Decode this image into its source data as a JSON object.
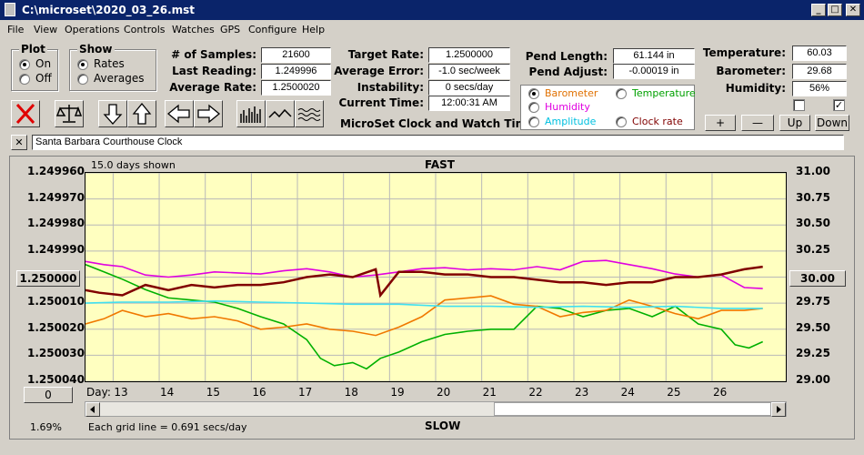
{
  "window": {
    "title": "C:\\microset\\2020_03_26.mst",
    "min": "_",
    "max": "□",
    "close": "✕"
  },
  "menu": [
    "File",
    "View",
    "Operations",
    "Controls",
    "Watches",
    "GPS",
    "Configure",
    "Help"
  ],
  "plot": {
    "label": "Plot",
    "on": "On",
    "off": "Off",
    "selected": "On"
  },
  "show": {
    "label": "Show",
    "rates": "Rates",
    "averages": "Averages",
    "selected": "Rates"
  },
  "stats": {
    "samples_label": "# of Samples:",
    "samples": "21600",
    "last_label": "Last Reading:",
    "last": "1.249996",
    "avg_label": "Average Rate:",
    "avg": "1.2500020"
  },
  "target": {
    "target_label": "Target Rate:",
    "target": "1.2500000",
    "error_label": "Average Error:",
    "error": "-1.0 sec/week",
    "instab_label": "Instability:",
    "instab": "0 secs/day",
    "time_label": "Current Time:",
    "time": "12:00:31 AM",
    "caption": "MicroSet Clock and Watch Timer"
  },
  "pend": {
    "length_label": "Pend Length:",
    "length": "61.144 in",
    "adjust_label": "Pend Adjust:",
    "adjust": "-0.00019 in"
  },
  "sensors": {
    "selected": "Barometer",
    "options": [
      {
        "label": "Barometer",
        "color": "#e07000"
      },
      {
        "label": "Temperature",
        "color": "#00a000"
      },
      {
        "label": "Humidity",
        "color": "#e000e0"
      },
      {
        "label": "Amplitude",
        "color": "#00c0e0"
      },
      {
        "label": "Clock rate",
        "color": "#800000"
      }
    ]
  },
  "env": {
    "temp_label": "Temperature:",
    "temp": "60.03",
    "baro_label": "Barometer:",
    "baro": "29.68",
    "hum_label": "Humidity:",
    "hum": "56%",
    "chk1": "",
    "chk2": "✓",
    "plus": "+",
    "minus": "—",
    "up": "Up",
    "down": "Down"
  },
  "clock_name": {
    "close": "✕",
    "value": "Santa Barbara Courthouse Clock"
  },
  "chart": {
    "days_shown": "15.0 days shown",
    "top": "FAST",
    "bottom": "SLOW",
    "left_button": "1.250000",
    "right_button": "30.00",
    "zero_button": "0",
    "percent": "1.69%",
    "grid_note": "Each grid line = 0.691 secs/day",
    "day_label": "Day:"
  },
  "chart_data": {
    "type": "line",
    "title": "",
    "xlabel": "Day:",
    "x_ticks": [
      "13",
      "14",
      "15",
      "16",
      "17",
      "18",
      "19",
      "20",
      "21",
      "22",
      "23",
      "24",
      "25",
      "26"
    ],
    "y_left_ticks": [
      "1.249960",
      "1.249970",
      "1.249980",
      "1.249990",
      "1.250000",
      "1.250010",
      "1.250020",
      "1.250030",
      "1.250040"
    ],
    "y_right_ticks": [
      "31.00",
      "30.75",
      "30.50",
      "30.25",
      "30.00",
      "29.75",
      "29.50",
      "29.25",
      "29.00"
    ],
    "ylim_left": [
      1.24996,
      1.25004
    ],
    "ylim_right": [
      29.0,
      31.0
    ],
    "y_left_inverted": true,
    "xlim": [
      12.2,
      27.4
    ],
    "grid": true,
    "series": [
      {
        "name": "Humidity",
        "color": "#e000e0",
        "axis": "right",
        "x": [
          12.2,
          12.6,
          13.0,
          13.5,
          14.0,
          14.5,
          15.0,
          15.5,
          16.0,
          16.5,
          17.0,
          17.5,
          18.0,
          18.5,
          19.0,
          19.5,
          20.0,
          20.5,
          21.0,
          21.5,
          22.0,
          22.5,
          23.0,
          23.5,
          24.0,
          24.5,
          25.0,
          25.5,
          26.0,
          26.5,
          26.9
        ],
        "values": [
          30.15,
          30.12,
          30.1,
          30.02,
          30.0,
          30.02,
          30.05,
          30.04,
          30.03,
          30.06,
          30.08,
          30.05,
          30.0,
          30.02,
          30.05,
          30.08,
          30.09,
          30.07,
          30.08,
          30.07,
          30.1,
          30.07,
          30.15,
          30.16,
          30.12,
          30.08,
          30.03,
          30.0,
          30.02,
          29.9,
          29.89
        ]
      },
      {
        "name": "Temperature",
        "color": "#00b000",
        "axis": "right",
        "x": [
          12.2,
          12.6,
          13.0,
          13.5,
          14.0,
          14.5,
          15.0,
          15.5,
          16.0,
          16.5,
          17.0,
          17.3,
          17.6,
          18.0,
          18.3,
          18.6,
          19.0,
          19.5,
          20.0,
          20.5,
          21.0,
          21.5,
          22.0,
          22.5,
          23.0,
          23.5,
          24.0,
          24.5,
          25.0,
          25.5,
          26.0,
          26.3,
          26.6,
          26.9
        ],
        "values": [
          30.12,
          30.05,
          29.98,
          29.88,
          29.8,
          29.78,
          29.76,
          29.7,
          29.62,
          29.55,
          29.4,
          29.22,
          29.15,
          29.18,
          29.12,
          29.22,
          29.28,
          29.38,
          29.45,
          29.48,
          29.5,
          29.5,
          29.72,
          29.7,
          29.62,
          29.68,
          29.7,
          29.62,
          29.72,
          29.55,
          29.5,
          29.35,
          29.32,
          29.38
        ]
      },
      {
        "name": "Barometer",
        "color": "#f07800",
        "axis": "right",
        "x": [
          12.2,
          12.6,
          13.0,
          13.5,
          14.0,
          14.5,
          15.0,
          15.5,
          16.0,
          16.5,
          17.0,
          17.5,
          18.0,
          18.5,
          19.0,
          19.5,
          20.0,
          20.5,
          21.0,
          21.5,
          22.0,
          22.5,
          23.0,
          23.5,
          24.0,
          24.5,
          25.0,
          25.5,
          26.0,
          26.5,
          26.9
        ],
        "values": [
          29.55,
          29.6,
          29.68,
          29.62,
          29.65,
          29.6,
          29.62,
          29.58,
          29.5,
          29.52,
          29.55,
          29.5,
          29.48,
          29.44,
          29.52,
          29.62,
          29.78,
          29.8,
          29.82,
          29.74,
          29.72,
          29.62,
          29.66,
          29.68,
          29.78,
          29.72,
          29.65,
          29.6,
          29.68,
          29.68,
          29.7
        ]
      },
      {
        "name": "Amplitude",
        "color": "#40e0f0",
        "axis": "right",
        "x": [
          12.2,
          13.0,
          14.0,
          15.0,
          16.0,
          17.0,
          18.0,
          19.0,
          20.0,
          21.0,
          22.0,
          23.0,
          24.0,
          25.0,
          26.0,
          26.9
        ],
        "values": [
          29.75,
          29.76,
          29.76,
          29.77,
          29.76,
          29.75,
          29.74,
          29.74,
          29.72,
          29.72,
          29.71,
          29.72,
          29.71,
          29.72,
          29.7,
          29.7
        ]
      },
      {
        "name": "Clock rate",
        "color": "#800000",
        "axis": "left",
        "x": [
          12.2,
          12.5,
          13.0,
          13.5,
          14.0,
          14.5,
          15.0,
          15.5,
          16.0,
          16.5,
          17.0,
          17.5,
          18.0,
          18.5,
          18.6,
          19.0,
          19.5,
          20.0,
          20.5,
          21.0,
          21.5,
          22.0,
          22.5,
          23.0,
          23.5,
          24.0,
          24.5,
          25.0,
          25.5,
          26.0,
          26.5,
          26.9
        ],
        "values": [
          1.250005,
          1.250006,
          1.250007,
          1.250003,
          1.250005,
          1.250003,
          1.250004,
          1.250003,
          1.250003,
          1.250002,
          1.25,
          1.249999,
          1.25,
          1.249997,
          1.250007,
          1.249998,
          1.249998,
          1.249999,
          1.249999,
          1.25,
          1.25,
          1.250001,
          1.250002,
          1.250002,
          1.250003,
          1.250002,
          1.250002,
          1.25,
          1.25,
          1.249999,
          1.249997,
          1.249996
        ]
      }
    ]
  }
}
